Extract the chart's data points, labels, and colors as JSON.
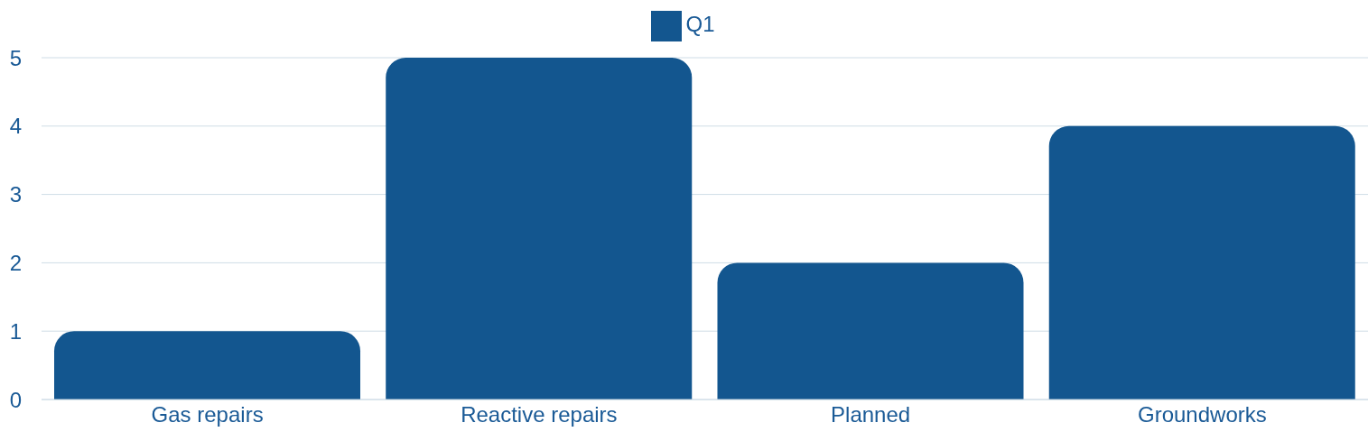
{
  "chart_data": {
    "type": "bar",
    "categories": [
      "Gas repairs",
      "Reactive repairs",
      "Planned",
      "Groundworks"
    ],
    "series": [
      {
        "name": "Q1",
        "color": "#13568f",
        "values": [
          1,
          5,
          2,
          4
        ]
      }
    ],
    "ylim": [
      0,
      5
    ],
    "yticks": [
      0,
      1,
      2,
      3,
      4,
      5
    ],
    "grid": "y",
    "legend": "top"
  }
}
